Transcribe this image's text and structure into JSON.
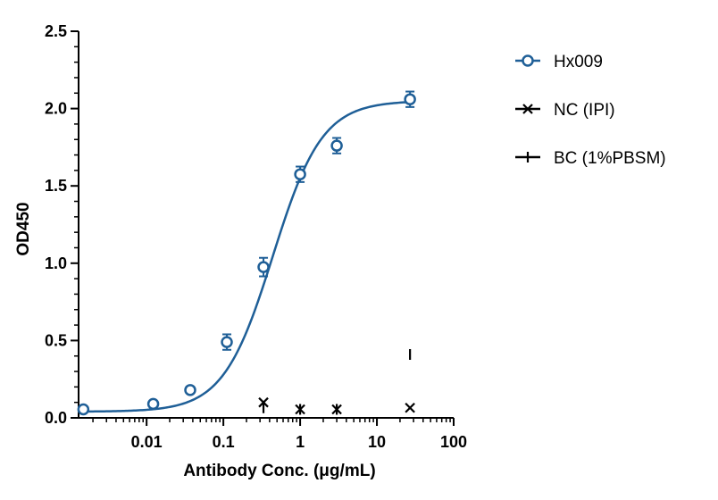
{
  "chart_data": {
    "type": "scatter",
    "xlabel": "Antibody Conc. (μg/mL)",
    "ylabel": "OD450",
    "x_scale": "log",
    "xlim": [
      0.0013,
      100
    ],
    "ylim": [
      0,
      2.5
    ],
    "x_ticks": [
      {
        "value": 0.01,
        "label": "0.01"
      },
      {
        "value": 0.1,
        "label": "0.1"
      },
      {
        "value": 1,
        "label": "1"
      },
      {
        "value": 10,
        "label": "10"
      },
      {
        "value": 100,
        "label": "100"
      }
    ],
    "y_ticks": [
      {
        "value": 0,
        "label": "0.0"
      },
      {
        "value": 0.5,
        "label": "0.5"
      },
      {
        "value": 1.0,
        "label": "1.0"
      },
      {
        "value": 1.5,
        "label": "1.5"
      },
      {
        "value": 2.0,
        "label": "2.0"
      },
      {
        "value": 2.5,
        "label": "2.5"
      }
    ],
    "grid": false,
    "legend_position": "right",
    "series": [
      {
        "name": "Hx009",
        "marker": "open-circle",
        "color": "#1f5f97",
        "fit": "4PL",
        "fit_params": {
          "bottom": 0.04,
          "top": 2.05,
          "ec50": 0.44,
          "hill": 1.35
        },
        "x": [
          0.0015,
          0.0122,
          0.037,
          0.111,
          0.333,
          1.0,
          3.0,
          27.0
        ],
        "y": [
          0.055,
          0.09,
          0.18,
          0.49,
          0.975,
          1.575,
          1.76,
          2.06
        ],
        "error": [
          0.0,
          0.0,
          0.0,
          0.05,
          0.06,
          0.05,
          0.05,
          0.05
        ]
      },
      {
        "name": "NC (IPI)",
        "marker": "x",
        "color": "#000000",
        "x": [
          0.333,
          1.0,
          3.0,
          27.0
        ],
        "y": [
          0.1,
          0.055,
          0.055,
          0.065
        ]
      },
      {
        "name": "BC (1%PBSM)",
        "marker": "vline",
        "color": "#000000",
        "x": [
          0.333,
          1.0,
          3.0,
          27.0
        ],
        "y": [
          0.065,
          0.055,
          0.055,
          0.41
        ]
      }
    ]
  }
}
